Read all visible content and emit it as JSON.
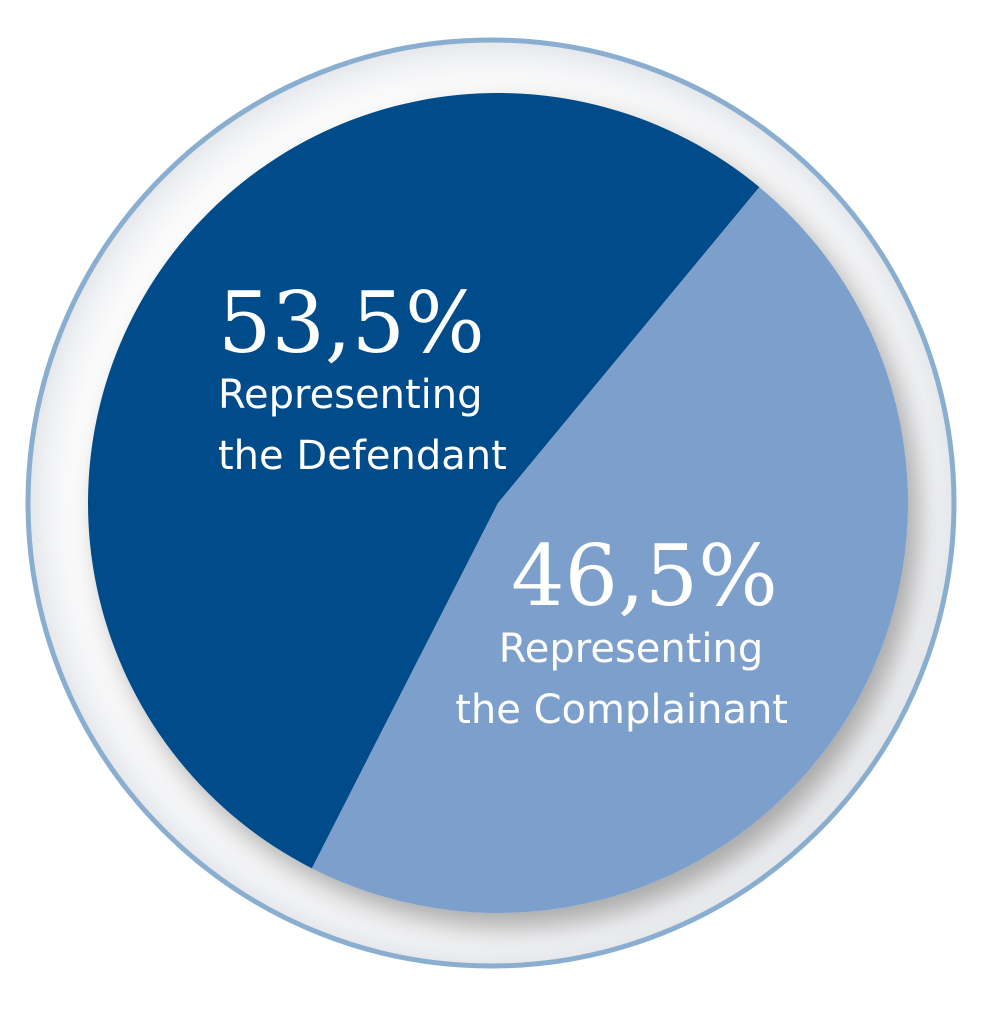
{
  "chart_data": {
    "type": "pie",
    "slices": [
      {
        "value": 53.5,
        "value_label": "53,5%",
        "label_lines": [
          "Representing",
          "the Defendant"
        ],
        "color": "#054b89"
      },
      {
        "value": 46.5,
        "value_label": "46,5%",
        "label_lines": [
          "Representing ",
          "the Complainant"
        ],
        "color": "#7c9fcc"
      }
    ],
    "ring_color": "#8aaed0",
    "legend": "none"
  }
}
